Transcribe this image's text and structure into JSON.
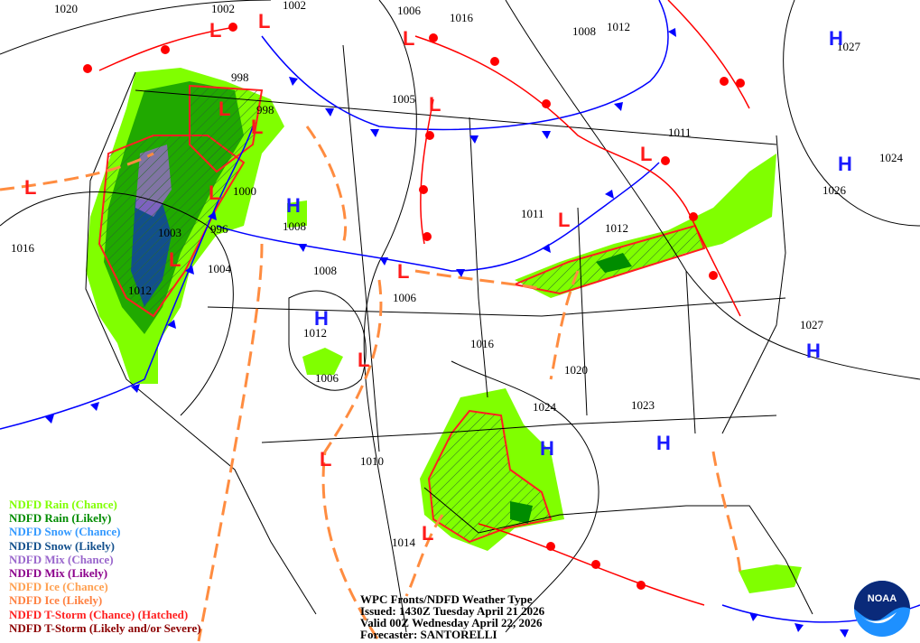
{
  "title": "WPC Fronts/NDFD Weather Type",
  "issued": "Issued: 1430Z Tuesday April 21 2026",
  "valid": "Valid 00Z Wednesday April 22, 2026",
  "forecaster": "Forecaster: SANTORELLI",
  "logo": "NOAA",
  "legend": [
    {
      "label": "NDFD Rain (Chance)",
      "color": "#80ff00"
    },
    {
      "label": "NDFD Rain (Likely)",
      "color": "#008c00"
    },
    {
      "label": "NDFD Snow (Chance)",
      "color": "#3399ff"
    },
    {
      "label": "NDFD Snow (Likely)",
      "color": "#124f8c"
    },
    {
      "label": "NDFD Mix (Chance)",
      "color": "#9966cc"
    },
    {
      "label": "NDFD Mix (Likely)",
      "color": "#8c008c"
    },
    {
      "label": "NDFD Ice (Chance)",
      "color": "#ffa050"
    },
    {
      "label": "NDFD Ice (Likely)",
      "color": "#ff8040"
    },
    {
      "label": "NDFD T-Storm (Chance) (Hatched)",
      "color": "#ff2020"
    },
    {
      "label": "NDFD T-Storm (Likely and/or Severe)",
      "color": "#8c0000"
    }
  ],
  "isobar_labels": [
    "1020",
    "1002",
    "1002",
    "1006",
    "1016",
    "1008",
    "1012",
    "1027",
    "998",
    "998",
    "1005",
    "1011",
    "1024",
    "1026",
    "1000",
    "1008",
    "996",
    "1003",
    "1011",
    "1012",
    "1016",
    "1004",
    "1008",
    "1006",
    "1012",
    "1012",
    "1016",
    "1027",
    "1020",
    "1006",
    "1024",
    "1023",
    "1010",
    "1014"
  ],
  "high_symbol": "H",
  "low_symbol": "L",
  "colors": {
    "cold_front": "#0000ff",
    "warm_front": "#ff0000",
    "trough": "#ff8c40",
    "high": "#1a1aff",
    "low": "#ff1a1a"
  }
}
